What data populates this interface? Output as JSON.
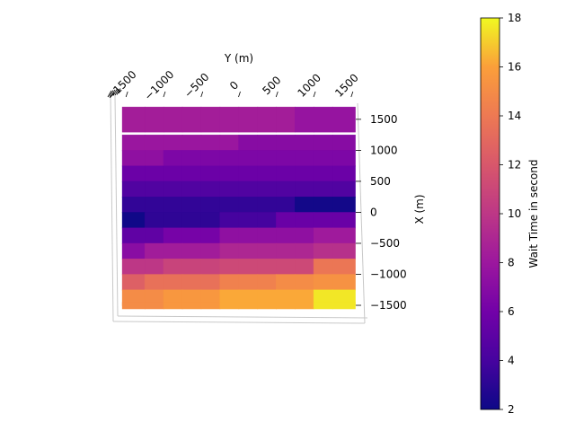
{
  "chart_data": {
    "type": "heatmap",
    "title": "",
    "xlabel": "Y (m)",
    "ylabel": "X (m)",
    "colorbar_label": "Wait Time in second",
    "colormap": "plasma",
    "x_ticks": [
      -1500,
      -1000,
      -500,
      0,
      500,
      1000,
      1500
    ],
    "y_ticks": [
      1500,
      1000,
      500,
      0,
      -500,
      -1000,
      -1500
    ],
    "x_tick_labels": [
      "−1500",
      "−1000",
      "−500",
      "0",
      "500",
      "1000",
      "1500"
    ],
    "y_tick_labels": [
      "1500",
      "1000",
      "500",
      "0",
      "−500",
      "−1000",
      "−1500"
    ],
    "xlim": [
      -1550,
      1550
    ],
    "ylim": [
      -1630,
      1730
    ],
    "colorbar_ticks": [
      2,
      4,
      6,
      8,
      10,
      12,
      14,
      16,
      18
    ],
    "vmin": 2,
    "vmax": 18,
    "row_centers_x": [
      1500,
      1125,
      875,
      625,
      375,
      125,
      -125,
      -375,
      -625,
      -875,
      -1125,
      -1375,
      -1500
    ],
    "row_heights": [
      400,
      250,
      250,
      250,
      250,
      250,
      250,
      250,
      250,
      250,
      250,
      250,
      100
    ],
    "col_edges_y": [
      -1550,
      -1250,
      -1000,
      -750,
      -500,
      -250,
      0,
      250,
      500,
      750,
      1000,
      1250,
      1550
    ],
    "values": [
      [
        8.4,
        8.4,
        8.4,
        8.4,
        8.4,
        8.4,
        8.4,
        8.4,
        8.4,
        7.7,
        7.7,
        7.7
      ],
      [
        7.9,
        7.9,
        7.9,
        7.9,
        7.9,
        7.9,
        7.0,
        7.0,
        7.0,
        7.0,
        7.0,
        7.0
      ],
      [
        7.4,
        7.4,
        6.5,
        6.5,
        6.5,
        6.5,
        6.5,
        6.5,
        6.5,
        6.5,
        6.5,
        6.5
      ],
      [
        5.7,
        5.7,
        5.7,
        5.7,
        5.7,
        5.7,
        5.7,
        5.7,
        5.7,
        5.7,
        5.7,
        5.7
      ],
      [
        4.5,
        4.5,
        4.5,
        4.5,
        4.5,
        4.5,
        4.5,
        4.5,
        4.5,
        4.5,
        4.5,
        4.5
      ],
      [
        3.3,
        3.3,
        3.3,
        3.3,
        3.3,
        3.3,
        3.3,
        3.3,
        3.3,
        2.2,
        2.2,
        2.2
      ],
      [
        2.1,
        3.2,
        3.2,
        3.2,
        3.2,
        4.0,
        4.0,
        4.0,
        5.6,
        5.6,
        5.6,
        5.6
      ],
      [
        5.2,
        5.2,
        6.2,
        6.2,
        6.2,
        7.4,
        7.4,
        7.4,
        7.4,
        7.4,
        8.2,
        8.2
      ],
      [
        7.1,
        8.3,
        8.3,
        8.3,
        8.3,
        9.0,
        9.0,
        9.0,
        9.0,
        9.0,
        9.6,
        9.6
      ],
      [
        10.0,
        10.0,
        10.8,
        10.8,
        10.8,
        11.1,
        11.1,
        11.1,
        11.1,
        11.1,
        13.8,
        13.8
      ],
      [
        12.5,
        13.5,
        13.5,
        13.5,
        13.5,
        14.4,
        14.4,
        14.4,
        15.0,
        15.0,
        15.3,
        15.3
      ],
      [
        15.0,
        15.0,
        15.6,
        15.6,
        15.6,
        16.2,
        16.2,
        16.2,
        16.2,
        16.2,
        17.6,
        17.6
      ],
      [
        15.0,
        15.0,
        15.6,
        15.6,
        15.6,
        16.2,
        16.2,
        16.2,
        16.2,
        16.2,
        17.6,
        17.6
      ]
    ]
  }
}
